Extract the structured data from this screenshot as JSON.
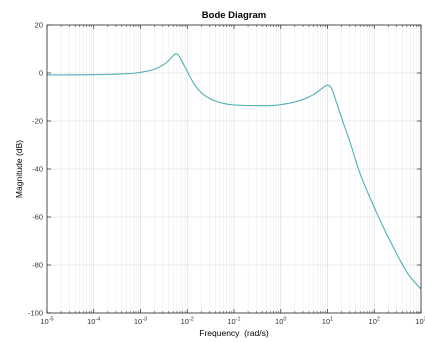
{
  "chart_data": {
    "type": "line",
    "title": "Bode Diagram",
    "xlabel": "Frequency  (rad/s)",
    "ylabel": "Magnitude (dB)",
    "xscale": "log",
    "xlim": [
      1e-05,
      1000
    ],
    "ylim": [
      -100,
      20
    ],
    "x_ticks": [
      1e-05,
      0.0001,
      0.001,
      0.01,
      0.1,
      1,
      10,
      100,
      1000
    ],
    "x_tick_labels": [
      {
        "base": "10",
        "exp": "-5"
      },
      {
        "base": "10",
        "exp": "-4"
      },
      {
        "base": "10",
        "exp": "-3"
      },
      {
        "base": "10",
        "exp": "-2"
      },
      {
        "base": "10",
        "exp": "-1"
      },
      {
        "base": "10",
        "exp": "0"
      },
      {
        "base": "10",
        "exp": "1"
      },
      {
        "base": "10",
        "exp": "2"
      },
      {
        "base": "10",
        "exp": "3"
      }
    ],
    "y_ticks": [
      -100,
      -80,
      -60,
      -40,
      -20,
      0,
      20
    ],
    "y_tick_labels": [
      "-100",
      "-80",
      "-60",
      "-40",
      "-20",
      "0",
      "20"
    ],
    "grid": true,
    "series": [
      {
        "color": "#4fb0b7",
        "points": [
          [
            1e-05,
            -0.8
          ],
          [
            0.0001,
            -0.7
          ],
          [
            0.0005,
            -0.3
          ],
          [
            0.001,
            0.3
          ],
          [
            0.002,
            1.6
          ],
          [
            0.0035,
            4.2
          ],
          [
            0.005,
            7.2
          ],
          [
            0.0058,
            8.0
          ],
          [
            0.0068,
            6.8
          ],
          [
            0.008,
            4.3
          ],
          [
            0.0095,
            1.5
          ],
          [
            0.012,
            -2.3
          ],
          [
            0.015,
            -5.4
          ],
          [
            0.02,
            -8.2
          ],
          [
            0.03,
            -10.6
          ],
          [
            0.05,
            -12.3
          ],
          [
            0.1,
            -13.3
          ],
          [
            0.3,
            -13.6
          ],
          [
            0.7,
            -13.5
          ],
          [
            1.5,
            -12.6
          ],
          [
            3,
            -11.0
          ],
          [
            5,
            -9.0
          ],
          [
            7,
            -7.0
          ],
          [
            9,
            -5.4
          ],
          [
            10.5,
            -5.1
          ],
          [
            12,
            -6.2
          ],
          [
            14,
            -9.5
          ],
          [
            17,
            -14.5
          ],
          [
            22,
            -21.0
          ],
          [
            30,
            -28.5
          ],
          [
            50,
            -42.0
          ],
          [
            100,
            -56.0
          ],
          [
            200,
            -68.5
          ],
          [
            500,
            -83.0
          ],
          [
            1000,
            -90.0
          ]
        ]
      }
    ]
  }
}
